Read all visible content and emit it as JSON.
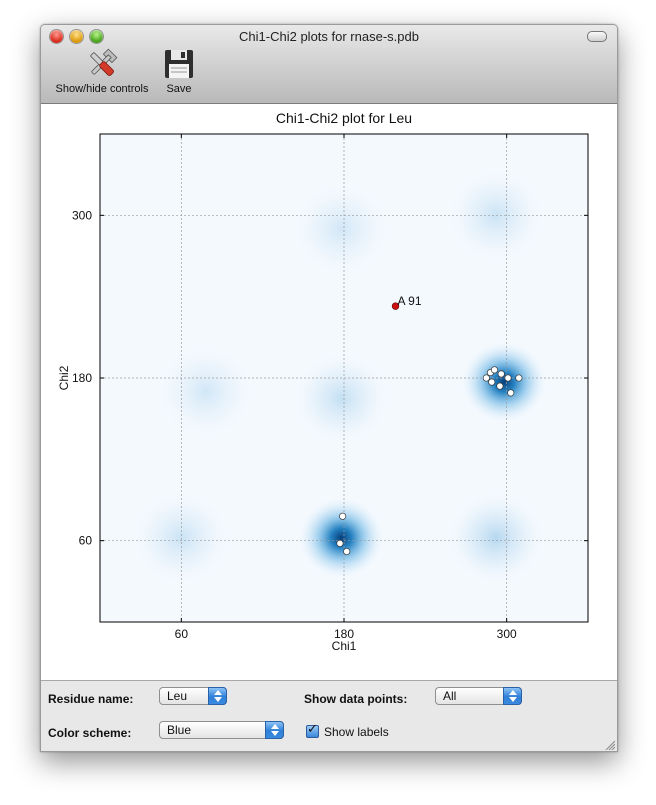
{
  "window": {
    "title": "Chi1-Chi2 plots for rnase-s.pdb"
  },
  "toolbar": {
    "items": [
      {
        "label": "Show/hide controls",
        "icon": "tools-icon"
      },
      {
        "label": "Save",
        "icon": "floppy-disk-icon"
      }
    ]
  },
  "chart_data": {
    "type": "scatter",
    "title": "Chi1-Chi2 plot for Leu",
    "xlabel": "Chi1",
    "ylabel": "Chi2",
    "xlim": [
      0,
      360
    ],
    "ylim": [
      0,
      360
    ],
    "xticks": [
      60,
      180,
      300
    ],
    "yticks": [
      60,
      180,
      300
    ],
    "grid": true,
    "background": "density heatmap (blue)",
    "points": [
      {
        "x": 179,
        "y": 78
      },
      {
        "x": 177,
        "y": 58
      },
      {
        "x": 182,
        "y": 52
      },
      {
        "x": 285,
        "y": 180
      },
      {
        "x": 288,
        "y": 184
      },
      {
        "x": 291,
        "y": 186
      },
      {
        "x": 289,
        "y": 177
      },
      {
        "x": 296,
        "y": 183
      },
      {
        "x": 295,
        "y": 174
      },
      {
        "x": 301,
        "y": 180
      },
      {
        "x": 309,
        "y": 180
      },
      {
        "x": 303,
        "y": 169
      }
    ],
    "highlighted": [
      {
        "x": 218,
        "y": 233,
        "label": "A  91",
        "color": "#cc1111"
      }
    ],
    "density_peaks": [
      {
        "x": 298,
        "y": 177,
        "strength": 1.0
      },
      {
        "x": 178,
        "y": 62,
        "strength": 0.8
      },
      {
        "x": 60,
        "y": 62,
        "strength": 0.12
      },
      {
        "x": 292,
        "y": 62,
        "strength": 0.18
      },
      {
        "x": 292,
        "y": 300,
        "strength": 0.12
      },
      {
        "x": 178,
        "y": 290,
        "strength": 0.1
      },
      {
        "x": 178,
        "y": 165,
        "strength": 0.14
      },
      {
        "x": 78,
        "y": 170,
        "strength": 0.1
      }
    ]
  },
  "controls": {
    "residue_name_label": "Residue name:",
    "residue_name_value": "Leu",
    "show_points_label": "Show data points:",
    "show_points_value": "All",
    "color_scheme_label": "Color scheme:",
    "color_scheme_value": "Blue",
    "show_labels_label": "Show labels",
    "show_labels_checked": true
  }
}
